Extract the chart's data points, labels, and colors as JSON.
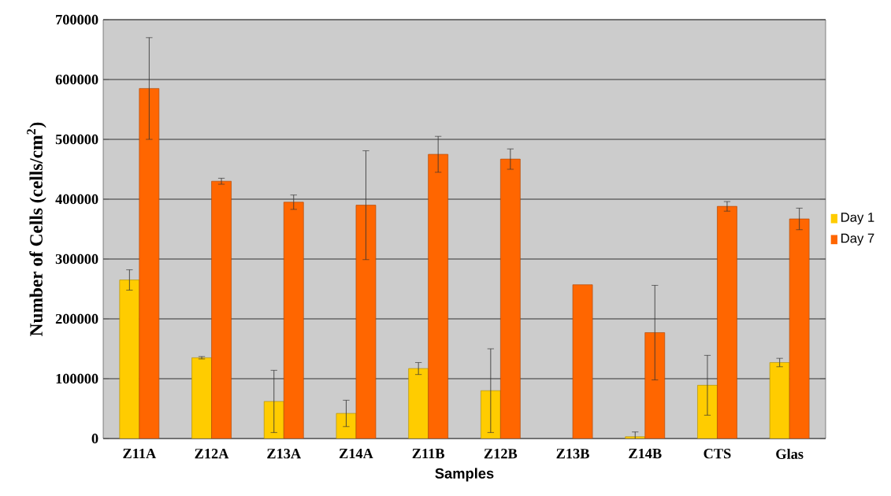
{
  "chart_data": {
    "type": "bar",
    "xlabel": "Samples",
    "ylabel": "Number of Cells (cells/cm$^{2}$)",
    "categories": [
      "Z11A",
      "Z12A",
      "Z13A",
      "Z14A",
      "Z11B",
      "Z12B",
      "Z13B",
      "Z14B",
      "CTS",
      "Glas"
    ],
    "series": [
      {
        "name": "Day 1",
        "color": "#ffcc00",
        "values": [
          265000,
          135000,
          62000,
          42000,
          117000,
          80000,
          null,
          3000,
          89000,
          127000
        ],
        "errors": [
          17000,
          2000,
          52000,
          22000,
          10000,
          70000,
          null,
          8000,
          50000,
          7000
        ]
      },
      {
        "name": "Day 7",
        "color": "#ff6600",
        "values": [
          585000,
          430000,
          395000,
          390000,
          475000,
          467000,
          257000,
          177000,
          388000,
          367000
        ],
        "errors": [
          85000,
          5000,
          12000,
          91000,
          30000,
          17000,
          null,
          79000,
          8000,
          18000
        ]
      }
    ],
    "ylim": [
      0,
      700000
    ],
    "yticks": [
      0,
      100000,
      200000,
      300000,
      400000,
      500000,
      600000,
      700000
    ],
    "grid": "y",
    "legend": "right"
  }
}
